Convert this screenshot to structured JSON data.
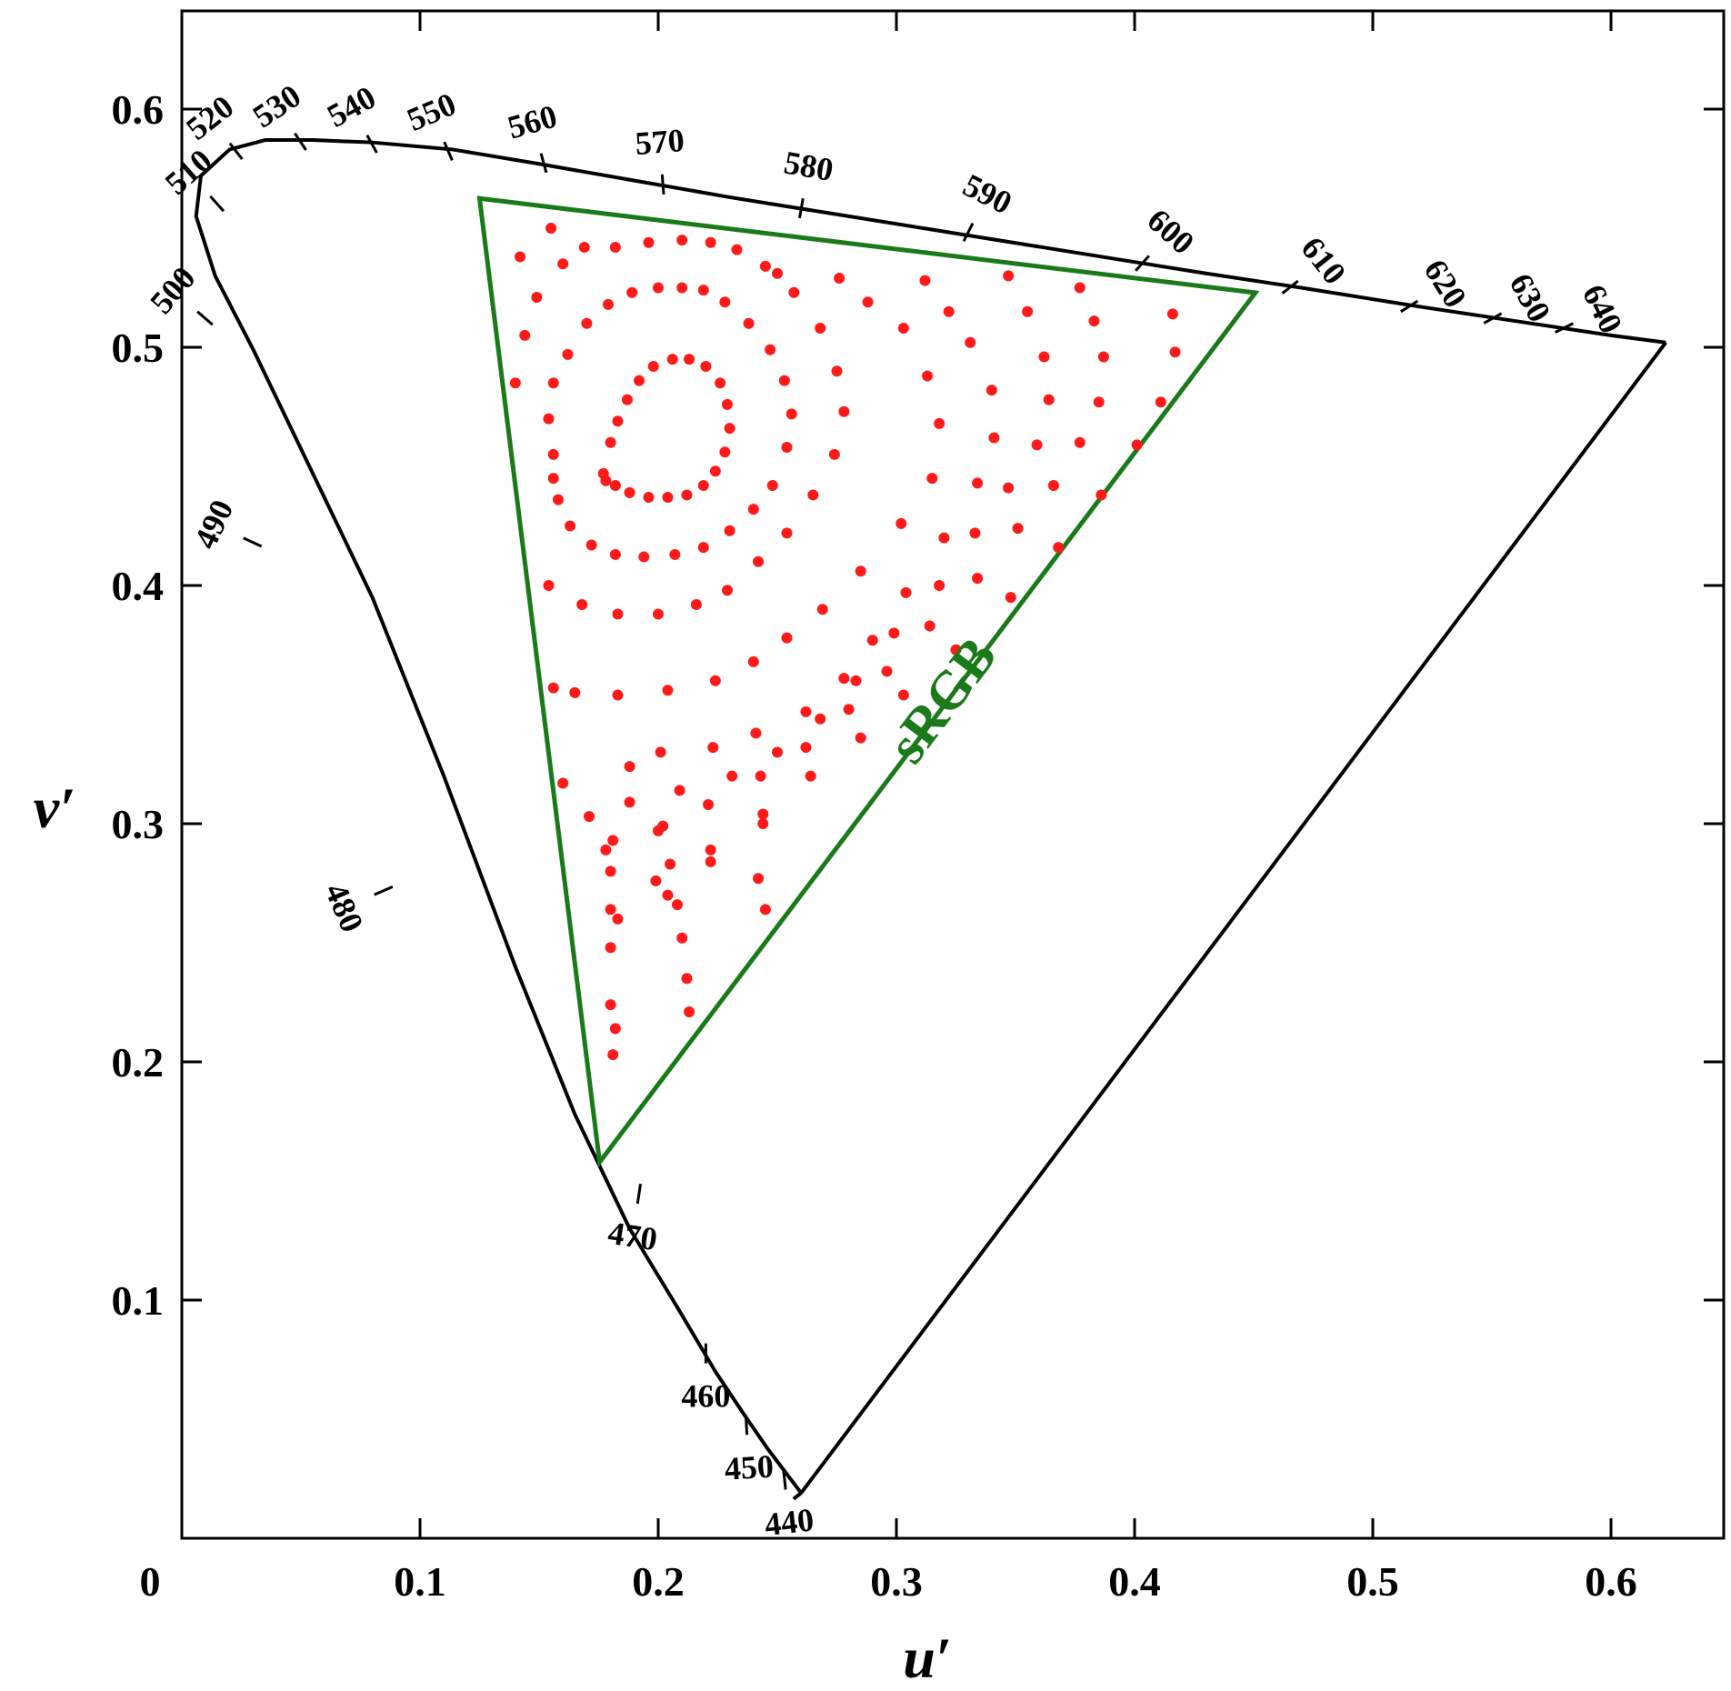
{
  "chart_data": {
    "type": "scatter",
    "title": "",
    "xlabel": "u′",
    "ylabel": "v′",
    "xlim": [
      0,
      0.65
    ],
    "ylim": [
      0,
      0.64
    ],
    "xticks": [
      "0",
      "0.1",
      "0.2",
      "0.3",
      "0.4",
      "0.5",
      "0.6"
    ],
    "xtick_values": [
      0,
      0.1,
      0.2,
      0.3,
      0.4,
      0.5,
      0.6
    ],
    "yticks": [
      "0.1",
      "0.2",
      "0.3",
      "0.4",
      "0.5",
      "0.6"
    ],
    "ytick_values": [
      0.1,
      0.2,
      0.3,
      0.4,
      0.5,
      0.6
    ],
    "grid": false,
    "locus_color": "#000000",
    "gamut_color": "#1a7a1a",
    "point_color": "#ff1a1a",
    "spectral_locus": [
      [
        0.2568,
        0.0165
      ],
      [
        0.26,
        0.019
      ],
      [
        0.246,
        0.0375
      ],
      [
        0.236,
        0.052
      ],
      [
        0.224,
        0.07
      ],
      [
        0.208,
        0.097
      ],
      [
        0.188,
        0.13
      ],
      [
        0.165,
        0.178
      ],
      [
        0.14,
        0.24
      ],
      [
        0.11,
        0.32
      ],
      [
        0.08,
        0.395
      ],
      [
        0.055,
        0.447
      ],
      [
        0.03,
        0.499
      ],
      [
        0.014,
        0.53
      ],
      [
        0.006,
        0.555
      ],
      [
        0.008,
        0.572
      ],
      [
        0.02,
        0.583
      ],
      [
        0.035,
        0.587
      ],
      [
        0.055,
        0.587
      ],
      [
        0.08,
        0.586
      ],
      [
        0.114,
        0.583
      ],
      [
        0.15,
        0.577
      ],
      [
        0.19,
        0.57
      ],
      [
        0.23,
        0.563
      ],
      [
        0.28,
        0.555
      ],
      [
        0.33,
        0.547
      ],
      [
        0.38,
        0.539
      ],
      [
        0.43,
        0.531
      ],
      [
        0.47,
        0.525
      ],
      [
        0.52,
        0.517
      ],
      [
        0.56,
        0.511
      ],
      [
        0.6,
        0.505
      ],
      [
        0.623,
        0.502
      ]
    ],
    "purple_line": [
      [
        0.623,
        0.502
      ],
      [
        0.26,
        0.019
      ]
    ],
    "wavelength_ticks": [
      {
        "label": "440",
        "u": 0.253,
        "v": 0.025
      },
      {
        "label": "450",
        "u": 0.237,
        "v": 0.048
      },
      {
        "label": "460",
        "u": 0.22,
        "v": 0.078
      },
      {
        "label": "470",
        "u": 0.192,
        "v": 0.145
      },
      {
        "label": "480",
        "u": 0.085,
        "v": 0.272
      },
      {
        "label": "490",
        "u": 0.03,
        "v": 0.418
      },
      {
        "label": "500",
        "u": 0.01,
        "v": 0.512
      },
      {
        "label": "510",
        "u": 0.015,
        "v": 0.56
      },
      {
        "label": "520",
        "u": 0.023,
        "v": 0.582
      },
      {
        "label": "530",
        "u": 0.05,
        "v": 0.586
      },
      {
        "label": "540",
        "u": 0.08,
        "v": 0.585
      },
      {
        "label": "550",
        "u": 0.112,
        "v": 0.582
      },
      {
        "label": "560",
        "u": 0.152,
        "v": 0.577
      },
      {
        "label": "570",
        "u": 0.202,
        "v": 0.568
      },
      {
        "label": "580",
        "u": 0.26,
        "v": 0.558
      },
      {
        "label": "590",
        "u": 0.33,
        "v": 0.548
      },
      {
        "label": "600",
        "u": 0.403,
        "v": 0.535
      },
      {
        "label": "610",
        "u": 0.465,
        "v": 0.525
      },
      {
        "label": "620",
        "u": 0.515,
        "v": 0.517
      },
      {
        "label": "630",
        "u": 0.55,
        "v": 0.512
      },
      {
        "label": "640",
        "u": 0.58,
        "v": 0.508
      }
    ],
    "gamut": {
      "name": "sRGB",
      "vertices": [
        [
          0.125,
          0.5625
        ],
        [
          0.4507,
          0.5229
        ],
        [
          0.1754,
          0.1579
        ]
      ]
    },
    "series": [
      {
        "points": [
          [
            0.177,
            0.447
          ],
          [
            0.18,
            0.46
          ],
          [
            0.183,
            0.469
          ],
          [
            0.187,
            0.478
          ],
          [
            0.192,
            0.486
          ],
          [
            0.198,
            0.492
          ],
          [
            0.206,
            0.495
          ],
          [
            0.213,
            0.495
          ],
          [
            0.22,
            0.492
          ],
          [
            0.226,
            0.485
          ],
          [
            0.229,
            0.476
          ],
          [
            0.23,
            0.466
          ],
          [
            0.228,
            0.456
          ],
          [
            0.224,
            0.448
          ],
          [
            0.219,
            0.442
          ],
          [
            0.212,
            0.438
          ],
          [
            0.204,
            0.437
          ],
          [
            0.196,
            0.437
          ],
          [
            0.188,
            0.439
          ],
          [
            0.182,
            0.442
          ],
          [
            0.178,
            0.444
          ],
          [
            0.156,
            0.455
          ],
          [
            0.154,
            0.47
          ],
          [
            0.156,
            0.485
          ],
          [
            0.162,
            0.497
          ],
          [
            0.17,
            0.51
          ],
          [
            0.179,
            0.518
          ],
          [
            0.189,
            0.523
          ],
          [
            0.2,
            0.525
          ],
          [
            0.21,
            0.525
          ],
          [
            0.219,
            0.524
          ],
          [
            0.228,
            0.519
          ],
          [
            0.238,
            0.51
          ],
          [
            0.247,
            0.499
          ],
          [
            0.253,
            0.486
          ],
          [
            0.256,
            0.472
          ],
          [
            0.254,
            0.458
          ],
          [
            0.248,
            0.442
          ],
          [
            0.24,
            0.432
          ],
          [
            0.23,
            0.423
          ],
          [
            0.219,
            0.416
          ],
          [
            0.207,
            0.413
          ],
          [
            0.194,
            0.412
          ],
          [
            0.182,
            0.413
          ],
          [
            0.172,
            0.417
          ],
          [
            0.163,
            0.425
          ],
          [
            0.158,
            0.436
          ],
          [
            0.156,
            0.445
          ],
          [
            0.14,
            0.485
          ],
          [
            0.144,
            0.505
          ],
          [
            0.149,
            0.521
          ],
          [
            0.16,
            0.535
          ],
          [
            0.169,
            0.542
          ],
          [
            0.182,
            0.542
          ],
          [
            0.196,
            0.544
          ],
          [
            0.21,
            0.545
          ],
          [
            0.222,
            0.544
          ],
          [
            0.233,
            0.541
          ],
          [
            0.245,
            0.534
          ],
          [
            0.257,
            0.523
          ],
          [
            0.268,
            0.508
          ],
          [
            0.275,
            0.49
          ],
          [
            0.278,
            0.473
          ],
          [
            0.274,
            0.455
          ],
          [
            0.265,
            0.438
          ],
          [
            0.254,
            0.422
          ],
          [
            0.242,
            0.41
          ],
          [
            0.229,
            0.398
          ],
          [
            0.216,
            0.392
          ],
          [
            0.2,
            0.388
          ],
          [
            0.183,
            0.388
          ],
          [
            0.168,
            0.392
          ],
          [
            0.154,
            0.4
          ],
          [
            0.142,
            0.538
          ],
          [
            0.155,
            0.55
          ],
          [
            0.25,
            0.531
          ],
          [
            0.276,
            0.529
          ],
          [
            0.288,
            0.519
          ],
          [
            0.303,
            0.508
          ],
          [
            0.313,
            0.488
          ],
          [
            0.318,
            0.468
          ],
          [
            0.315,
            0.445
          ],
          [
            0.302,
            0.426
          ],
          [
            0.285,
            0.406
          ],
          [
            0.269,
            0.39
          ],
          [
            0.254,
            0.378
          ],
          [
            0.24,
            0.368
          ],
          [
            0.224,
            0.36
          ],
          [
            0.204,
            0.356
          ],
          [
            0.183,
            0.354
          ],
          [
            0.165,
            0.355
          ],
          [
            0.156,
            0.357
          ],
          [
            0.312,
            0.528
          ],
          [
            0.322,
            0.515
          ],
          [
            0.331,
            0.502
          ],
          [
            0.34,
            0.482
          ],
          [
            0.341,
            0.462
          ],
          [
            0.334,
            0.443
          ],
          [
            0.32,
            0.42
          ],
          [
            0.304,
            0.397
          ],
          [
            0.29,
            0.377
          ],
          [
            0.278,
            0.361
          ],
          [
            0.262,
            0.347
          ],
          [
            0.241,
            0.338
          ],
          [
            0.223,
            0.332
          ],
          [
            0.201,
            0.33
          ],
          [
            0.188,
            0.324
          ],
          [
            0.16,
            0.317
          ],
          [
            0.347,
            0.53
          ],
          [
            0.355,
            0.515
          ],
          [
            0.362,
            0.496
          ],
          [
            0.364,
            0.478
          ],
          [
            0.359,
            0.459
          ],
          [
            0.347,
            0.441
          ],
          [
            0.333,
            0.422
          ],
          [
            0.318,
            0.4
          ],
          [
            0.299,
            0.38
          ],
          [
            0.283,
            0.36
          ],
          [
            0.268,
            0.344
          ],
          [
            0.25,
            0.33
          ],
          [
            0.231,
            0.32
          ],
          [
            0.209,
            0.314
          ],
          [
            0.188,
            0.309
          ],
          [
            0.171,
            0.303
          ],
          [
            0.377,
            0.525
          ],
          [
            0.383,
            0.511
          ],
          [
            0.387,
            0.496
          ],
          [
            0.385,
            0.477
          ],
          [
            0.377,
            0.46
          ],
          [
            0.366,
            0.442
          ],
          [
            0.351,
            0.424
          ],
          [
            0.334,
            0.403
          ],
          [
            0.314,
            0.383
          ],
          [
            0.296,
            0.364
          ],
          [
            0.28,
            0.348
          ],
          [
            0.262,
            0.332
          ],
          [
            0.243,
            0.32
          ],
          [
            0.221,
            0.308
          ],
          [
            0.2,
            0.297
          ],
          [
            0.178,
            0.289
          ],
          [
            0.416,
            0.514
          ],
          [
            0.417,
            0.498
          ],
          [
            0.411,
            0.477
          ],
          [
            0.401,
            0.459
          ],
          [
            0.386,
            0.438
          ],
          [
            0.368,
            0.416
          ],
          [
            0.348,
            0.395
          ],
          [
            0.325,
            0.373
          ],
          [
            0.303,
            0.354
          ],
          [
            0.285,
            0.336
          ],
          [
            0.264,
            0.32
          ],
          [
            0.244,
            0.304
          ],
          [
            0.222,
            0.289
          ],
          [
            0.199,
            0.276
          ],
          [
            0.18,
            0.264
          ],
          [
            0.244,
            0.3
          ],
          [
            0.222,
            0.284
          ],
          [
            0.204,
            0.27
          ],
          [
            0.183,
            0.26
          ],
          [
            0.18,
            0.248
          ],
          [
            0.18,
            0.224
          ],
          [
            0.181,
            0.203
          ],
          [
            0.182,
            0.214
          ],
          [
            0.213,
            0.221
          ],
          [
            0.212,
            0.235
          ],
          [
            0.21,
            0.252
          ],
          [
            0.208,
            0.266
          ],
          [
            0.205,
            0.283
          ],
          [
            0.242,
            0.277
          ],
          [
            0.245,
            0.264
          ],
          [
            0.18,
            0.28
          ],
          [
            0.181,
            0.293
          ],
          [
            0.202,
            0.299
          ]
        ]
      }
    ]
  }
}
